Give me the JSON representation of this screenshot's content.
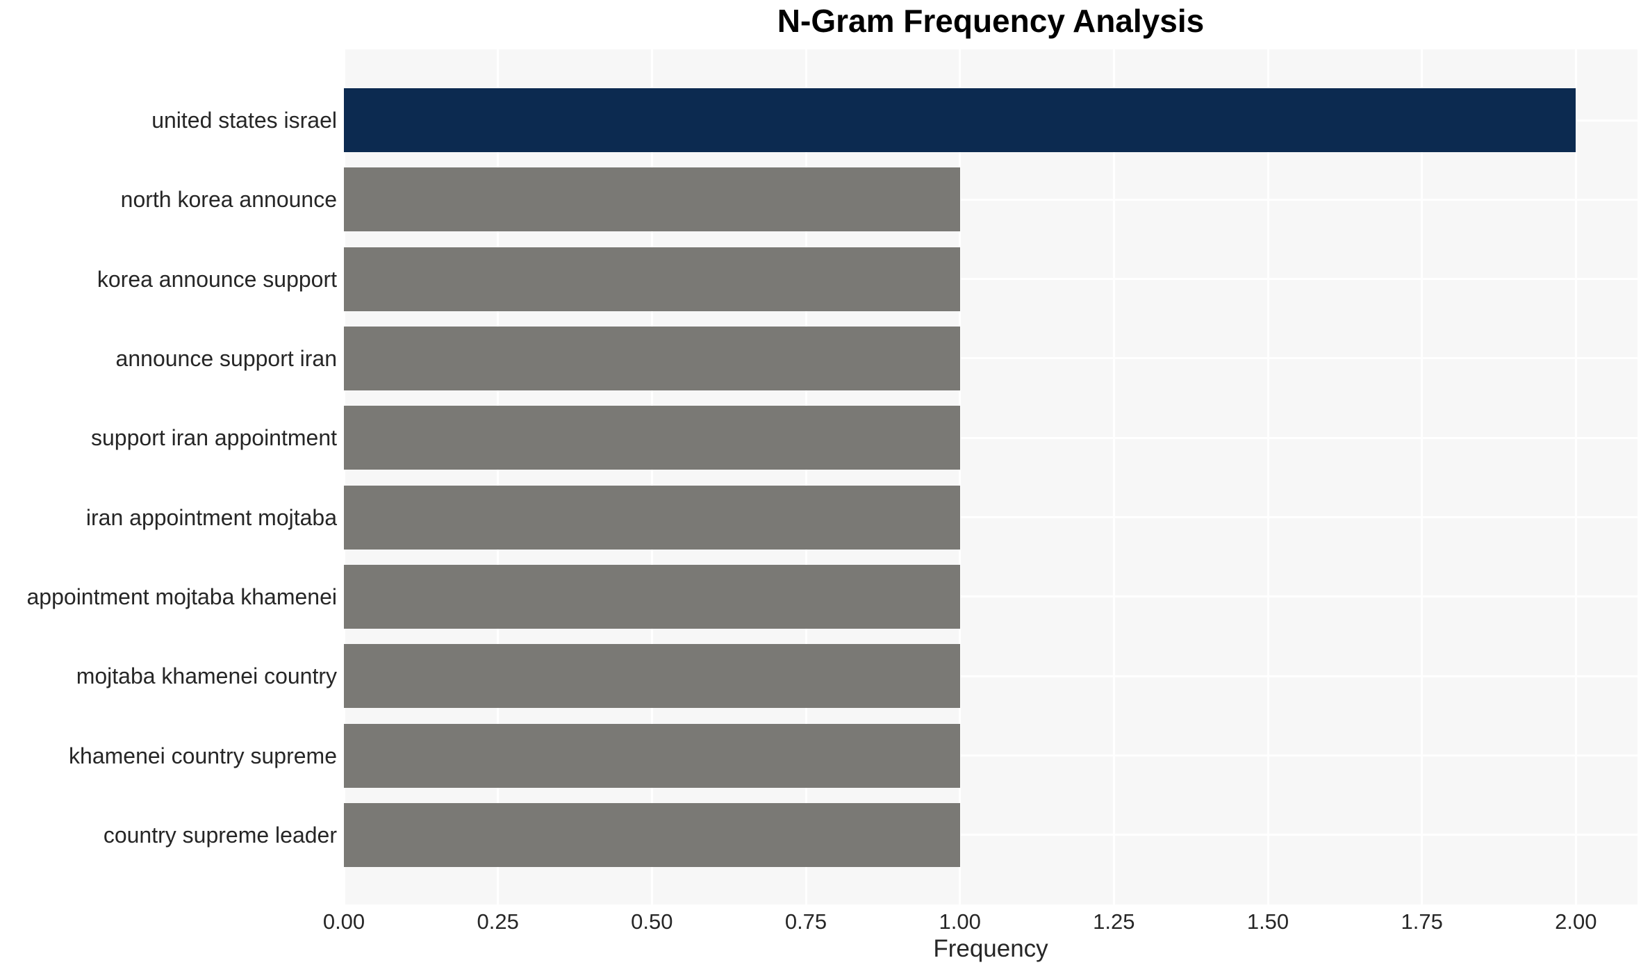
{
  "chart_data": {
    "type": "bar",
    "orientation": "horizontal",
    "title": "N-Gram Frequency Analysis",
    "xlabel": "Frequency",
    "ylabel": "",
    "categories": [
      "united states israel",
      "north korea announce",
      "korea announce support",
      "announce support iran",
      "support iran appointment",
      "iran appointment mojtaba",
      "appointment mojtaba khamenei",
      "mojtaba khamenei country",
      "khamenei country supreme",
      "country supreme leader"
    ],
    "values": [
      2,
      1,
      1,
      1,
      1,
      1,
      1,
      1,
      1,
      1
    ],
    "bar_colors": [
      "#0c2a50",
      "#7a7975",
      "#7a7975",
      "#7a7975",
      "#7a7975",
      "#7a7975",
      "#7a7975",
      "#7a7975",
      "#7a7975",
      "#7a7975"
    ],
    "highlight_color": "#0c2a50",
    "default_bar_color": "#7a7975",
    "xlim": [
      0,
      2.1
    ],
    "xticks": {
      "values": [
        0,
        0.25,
        0.5,
        0.75,
        1.0,
        1.25,
        1.5,
        1.75,
        2.0
      ],
      "labels": [
        "0.00",
        "0.25",
        "0.50",
        "0.75",
        "1.00",
        "1.25",
        "1.50",
        "1.75",
        "2.00"
      ]
    },
    "grid": true,
    "legend": false,
    "plot_background": "#f7f7f7",
    "gridline_color": "#ffffff",
    "text_color": "#262626",
    "title_color": "#000000"
  }
}
